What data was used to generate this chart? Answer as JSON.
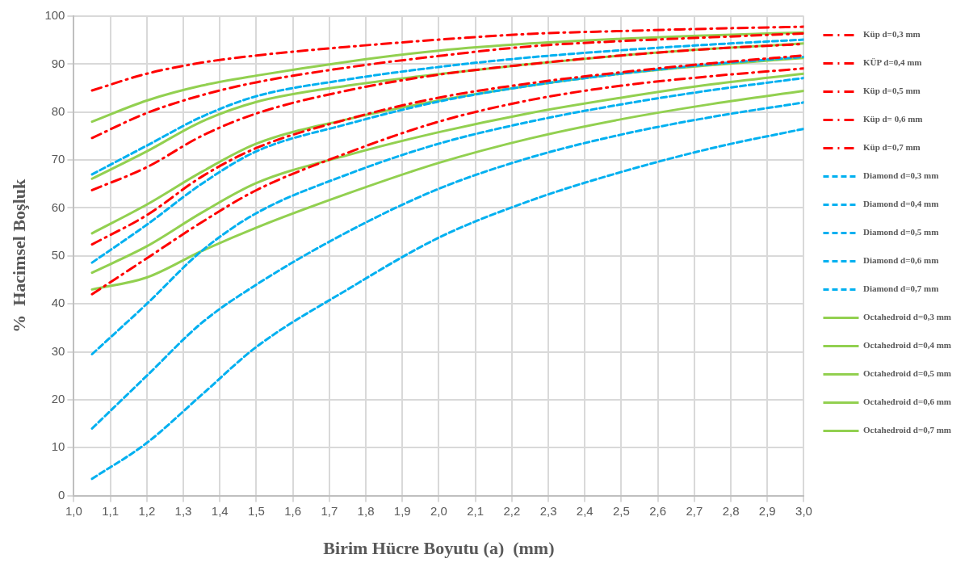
{
  "chart_data": {
    "type": "line",
    "xlabel": "Birim Hücre Boyutu (a)  (mm)",
    "ylabel": "%  Hacimsel Boşluk",
    "x": [
      1.05,
      1.2,
      1.35,
      1.5,
      1.75,
      2.0,
      2.25,
      2.5,
      2.75,
      3.0
    ],
    "xlim": [
      1.0,
      3.0
    ],
    "xticks": [
      {
        "value": 1.0,
        "label": "1,0"
      },
      {
        "value": 1.1,
        "label": "1,1"
      },
      {
        "value": 1.2,
        "label": "1,2"
      },
      {
        "value": 1.3,
        "label": "1,3"
      },
      {
        "value": 1.4,
        "label": "1,4"
      },
      {
        "value": 1.5,
        "label": "1,5"
      },
      {
        "value": 1.6,
        "label": "1,6"
      },
      {
        "value": 1.7,
        "label": "1,7"
      },
      {
        "value": 1.8,
        "label": "1,8"
      },
      {
        "value": 1.9,
        "label": "1,9"
      },
      {
        "value": 2.0,
        "label": "2,0"
      },
      {
        "value": 2.1,
        "label": "2,1"
      },
      {
        "value": 2.2,
        "label": "2,2"
      },
      {
        "value": 2.3,
        "label": "2,3"
      },
      {
        "value": 2.4,
        "label": "2,4"
      },
      {
        "value": 2.5,
        "label": "2,5"
      },
      {
        "value": 2.6,
        "label": "2,6"
      },
      {
        "value": 2.7,
        "label": "2,7"
      },
      {
        "value": 2.8,
        "label": "2,8"
      },
      {
        "value": 2.9,
        "label": "2,9"
      },
      {
        "value": 3.0,
        "label": "3,0"
      }
    ],
    "ylim": [
      0,
      100
    ],
    "yticks": [
      0,
      10,
      20,
      30,
      40,
      50,
      60,
      70,
      80,
      90,
      100
    ],
    "grid": true,
    "legend": "right",
    "marker": "none",
    "series": [
      {
        "name": "Küp d=0,3 mm",
        "color": "#ff0000",
        "line_style": "dashdot",
        "values": [
          84.5,
          88,
          90.3,
          91.8,
          93.6,
          95.1,
          96.3,
          96.9,
          97.4,
          97.8
        ]
      },
      {
        "name": "KÜP d=0,4 mm",
        "color": "#ff0000",
        "line_style": "dashdot",
        "values": [
          74.6,
          79.8,
          83.5,
          86.2,
          89.3,
          91.7,
          93.7,
          94.8,
          95.6,
          96.4
        ]
      },
      {
        "name": "Küp d=0,5 mm",
        "color": "#ff0000",
        "line_style": "dashdot",
        "values": [
          63.7,
          68.5,
          75,
          79.7,
          84.5,
          87.8,
          90,
          91.8,
          93.2,
          94.2
        ]
      },
      {
        "name": "Küp d= 0,6 mm",
        "color": "#ff0000",
        "line_style": "dashdot",
        "values": [
          52.4,
          58.5,
          66.5,
          72.5,
          78.5,
          83,
          86,
          88.3,
          90.2,
          91.8
        ]
      },
      {
        "name": "Küp d=0,7 mm",
        "color": "#ff0000",
        "line_style": "dashdot",
        "values": [
          42,
          49.5,
          57,
          63.7,
          71.5,
          78,
          82.5,
          85.5,
          87.5,
          89.1
        ]
      },
      {
        "name": "Diamond d=0,3 mm",
        "color": "#00b0f0",
        "line_style": "dashed",
        "values": [
          67,
          73,
          79,
          83.3,
          86.8,
          89.4,
          91.4,
          92.9,
          94.1,
          95.1
        ]
      },
      {
        "name": "Diamond d=0,4 mm",
        "color": "#00b0f0",
        "line_style": "dashed",
        "values": [
          48.6,
          56.5,
          65,
          71.8,
          77.5,
          82.2,
          85.5,
          88,
          90,
          91.5
        ]
      },
      {
        "name": "Diamond d=0,5 mm",
        "color": "#00b0f0",
        "line_style": "dashed",
        "values": [
          29.5,
          40,
          51,
          58.9,
          67,
          73.4,
          78,
          81.6,
          84.6,
          87.1
        ]
      },
      {
        "name": "Diamond d=0,6 mm",
        "color": "#00b0f0",
        "line_style": "dashed",
        "values": [
          14,
          25,
          36,
          44,
          55,
          64,
          70.5,
          75.3,
          79,
          82
        ]
      },
      {
        "name": "Diamond d=0,7 mm",
        "color": "#00b0f0",
        "line_style": "dashed",
        "values": [
          3.5,
          11,
          21,
          31,
          43,
          53.8,
          61.5,
          67.5,
          72.5,
          76.5
        ]
      },
      {
        "name": "Octahedroid d=0,3 mm",
        "color": "#92d050",
        "line_style": "solid",
        "values": [
          78,
          82.4,
          85.5,
          87.6,
          90.5,
          92.8,
          94.3,
          95.3,
          96,
          96.6
        ]
      },
      {
        "name": "Octahedroid d=0,4 mm",
        "color": "#92d050",
        "line_style": "solid",
        "values": [
          66.1,
          71.8,
          78,
          82.1,
          85.5,
          87.9,
          90,
          91.8,
          93.2,
          94.3
        ]
      },
      {
        "name": "Octahedroid d=0,5 mm",
        "color": "#92d050",
        "line_style": "solid",
        "values": [
          54.7,
          60.7,
          67.5,
          73.4,
          78.5,
          82.4,
          85.5,
          88,
          89.8,
          91.3
        ]
      },
      {
        "name": "Octahedroid d=0,6 mm",
        "color": "#92d050",
        "line_style": "solid",
        "values": [
          46.5,
          52,
          59,
          65.2,
          71,
          75.8,
          79.8,
          83,
          85.8,
          88
        ]
      },
      {
        "name": "Octahedroid d=0,7 mm",
        "color": "#92d050",
        "line_style": "solid",
        "values": [
          43,
          45.5,
          51,
          55.9,
          63,
          69.4,
          74.5,
          78.5,
          81.7,
          84.4
        ]
      }
    ]
  }
}
